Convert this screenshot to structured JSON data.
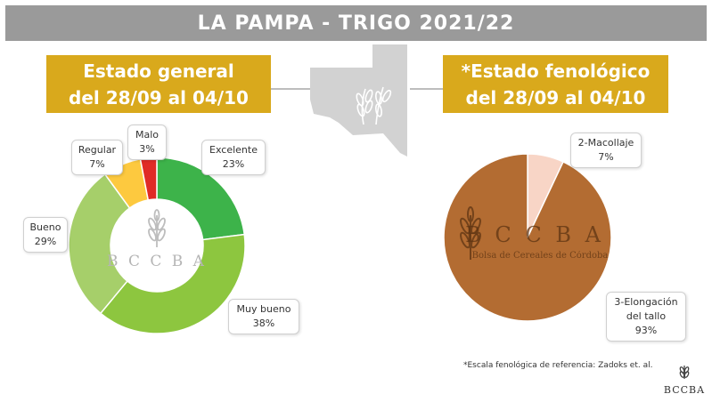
{
  "header": {
    "title": "LA PAMPA - TRIGO 2021/22"
  },
  "left_box": {
    "line1": "Estado general",
    "line2": "del 28/09 al 04/10"
  },
  "right_box": {
    "line1": "*Estado fenológico",
    "line2": "del 28/09 al 04/10"
  },
  "footnote": "*Escala fenológica de referencia: Zadoks et. al.",
  "logo": {
    "short": "BCCBA",
    "spaced": "B C C B A",
    "full": "Bolsa de Cereales de Córdoba"
  },
  "colors": {
    "title_bar": "#9a9a9a",
    "gold": "#d9a91c",
    "excelente": "#3db34a",
    "muy_bueno": "#8dc63f",
    "bueno": "#a6cf6a",
    "regular": "#fdc93f",
    "malo": "#e02b26",
    "macollaje": "#f8d5c6",
    "elongacion": "#b36c32"
  },
  "chart_data": [
    {
      "type": "pie",
      "variant": "donut",
      "title": "Estado general",
      "categories": [
        "Excelente",
        "Muy bueno",
        "Bueno",
        "Regular",
        "Malo"
      ],
      "values": [
        23,
        38,
        29,
        7,
        3
      ],
      "labels": [
        {
          "name": "Excelente",
          "pct": "23%"
        },
        {
          "name": "Muy bueno",
          "pct": "38%"
        },
        {
          "name": "Bueno",
          "pct": "29%"
        },
        {
          "name": "Regular",
          "pct": "7%"
        },
        {
          "name": "Malo",
          "pct": "3%"
        }
      ]
    },
    {
      "type": "pie",
      "title": "*Estado fenológico",
      "categories": [
        "2-Macollaje",
        "3-Elongación del tallo"
      ],
      "values": [
        7,
        93
      ],
      "labels": [
        {
          "name": "2-Macollaje",
          "pct": "7%"
        },
        {
          "name": "3-Elongación del tallo",
          "pct": "93%"
        }
      ]
    }
  ]
}
